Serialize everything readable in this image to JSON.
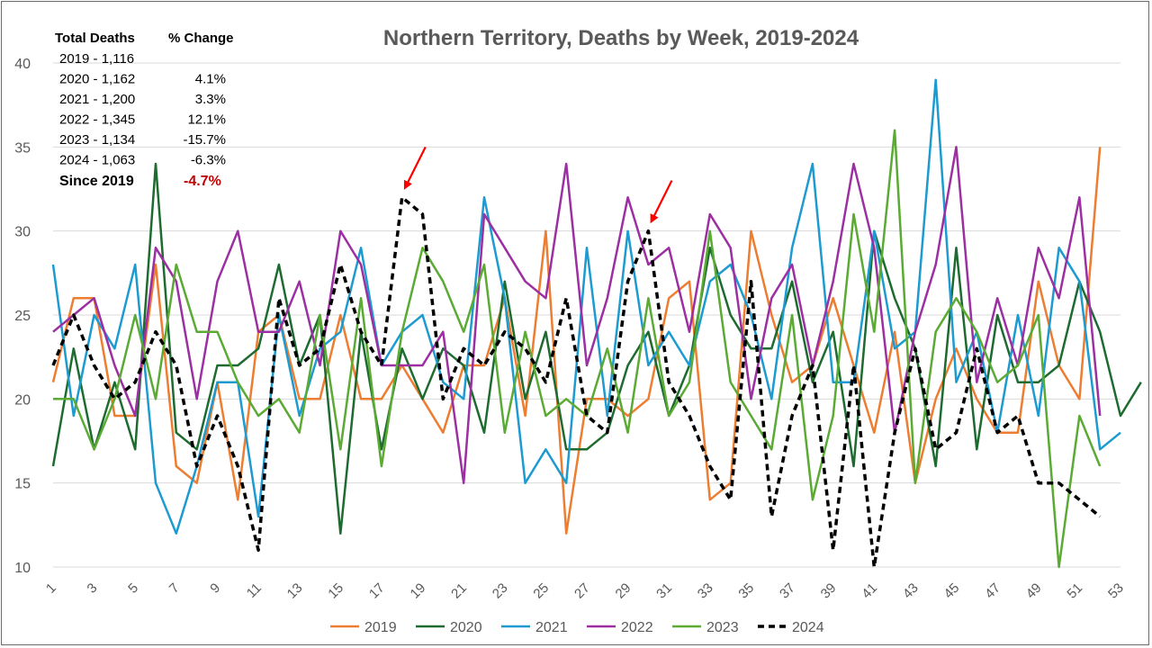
{
  "chart_data": {
    "type": "line",
    "title": "Northern Territory, Deaths by Week, 2019-2024",
    "xlabel": "",
    "ylabel": "",
    "ylim": [
      10,
      40
    ],
    "y_ticks": [
      "10",
      "15",
      "20",
      "25",
      "30",
      "35",
      "40"
    ],
    "x_ticks": [
      "1",
      "3",
      "5",
      "7",
      "9",
      "11",
      "13",
      "15",
      "17",
      "19",
      "21",
      "23",
      "25",
      "27",
      "29",
      "31",
      "33",
      "35",
      "37",
      "39",
      "41",
      "43",
      "45",
      "47",
      "49",
      "51",
      "53"
    ],
    "xlim": [
      1,
      53
    ],
    "grid": "horizontal",
    "legend_position": "bottom",
    "series": [
      {
        "name": "2019",
        "color": "#ed7d31",
        "dash": "solid",
        "values": [
          21,
          26,
          26,
          19,
          19,
          28,
          16,
          15,
          21,
          14,
          24,
          25,
          20,
          20,
          25,
          20,
          20,
          22,
          20,
          18,
          22,
          22,
          26,
          19,
          30,
          12,
          20,
          20,
          19,
          20,
          26,
          27,
          14,
          15,
          30,
          25,
          21,
          22,
          26,
          22,
          18,
          24,
          15,
          20,
          23,
          20,
          18,
          18,
          27,
          22,
          20,
          35
        ]
      },
      {
        "name": "2020",
        "color": "#1e6b30",
        "dash": "solid",
        "values": [
          16,
          23,
          17,
          21,
          17,
          34,
          18,
          17,
          22,
          22,
          23,
          28,
          22,
          25,
          12,
          24,
          17,
          23,
          20,
          23,
          22,
          18,
          27,
          20,
          24,
          17,
          17,
          18,
          22,
          24,
          19,
          22,
          29,
          25,
          23,
          23,
          27,
          21,
          24,
          16,
          30,
          26,
          23,
          16,
          29,
          17,
          25,
          21,
          21,
          22,
          27,
          24,
          19,
          21
        ]
      },
      {
        "name": "2021",
        "color": "#1d9bd1",
        "dash": "solid",
        "values": [
          28,
          19,
          25,
          23,
          28,
          15,
          12,
          16,
          21,
          21,
          13,
          25,
          19,
          23,
          24,
          29,
          22,
          24,
          25,
          21,
          20,
          32,
          26,
          15,
          17,
          15,
          29,
          19,
          30,
          22,
          24,
          22,
          27,
          28,
          25,
          20,
          29,
          34,
          21,
          21,
          30,
          23,
          24,
          39,
          21,
          24,
          18,
          25,
          19,
          29,
          27,
          17,
          18
        ]
      },
      {
        "name": "2022",
        "color": "#9c2fa1",
        "dash": "solid",
        "values": [
          24,
          25,
          26,
          22,
          19,
          29,
          27,
          20,
          27,
          30,
          24,
          24,
          27,
          22,
          30,
          28,
          22,
          22,
          22,
          24,
          15,
          31,
          29,
          27,
          26,
          34,
          22,
          26,
          32,
          28,
          29,
          24,
          31,
          29,
          20,
          26,
          28,
          22,
          27,
          34,
          29,
          18,
          24,
          28,
          35,
          21,
          26,
          22,
          29,
          26,
          32,
          19
        ]
      },
      {
        "name": "2023",
        "color": "#5aaa34",
        "dash": "solid",
        "values": [
          20,
          20,
          17,
          20,
          25,
          20,
          28,
          24,
          24,
          21,
          19,
          20,
          18,
          25,
          17,
          26,
          16,
          24,
          29,
          27,
          24,
          28,
          18,
          24,
          19,
          20,
          19,
          23,
          18,
          26,
          19,
          21,
          30,
          21,
          19,
          17,
          25,
          14,
          19,
          31,
          24,
          36,
          15,
          24,
          26,
          24,
          21,
          22,
          25,
          10,
          19,
          16
        ]
      },
      {
        "name": "2024",
        "color": "#000000",
        "dash": "dashed",
        "values": [
          22,
          25,
          22,
          20,
          21,
          24,
          22,
          16,
          19,
          16,
          11,
          26,
          22,
          23,
          28,
          24,
          22,
          32,
          31,
          20,
          23,
          22,
          24,
          23,
          21,
          26,
          19,
          18,
          27,
          30,
          21,
          19,
          16,
          14,
          27,
          13,
          19,
          22,
          11,
          22,
          10,
          18,
          23,
          17,
          18,
          23,
          18,
          19,
          15,
          15,
          14,
          13
        ]
      }
    ],
    "annotations": [
      {
        "type": "arrow",
        "color": "#ff0000",
        "target_week": 18,
        "target_value": 32
      },
      {
        "type": "arrow",
        "color": "#ff0000",
        "target_week": 30,
        "target_value": 30
      }
    ]
  },
  "summary_table": {
    "header_left": "Total Deaths",
    "header_right": "% Change",
    "rows": [
      {
        "label": "2019 - 1,116",
        "change": ""
      },
      {
        "label": "2020 - 1,162",
        "change": "4.1%"
      },
      {
        "label": "2021 - 1,200",
        "change": "3.3%"
      },
      {
        "label": "2022 - 1,345",
        "change": "12.1%"
      },
      {
        "label": "2023 - 1,134",
        "change": "-15.7%"
      },
      {
        "label": "2024 - 1,063",
        "change": "-6.3%"
      }
    ],
    "since_label": "Since 2019",
    "since_value": "-4.7%",
    "since_color": "#c00000"
  }
}
